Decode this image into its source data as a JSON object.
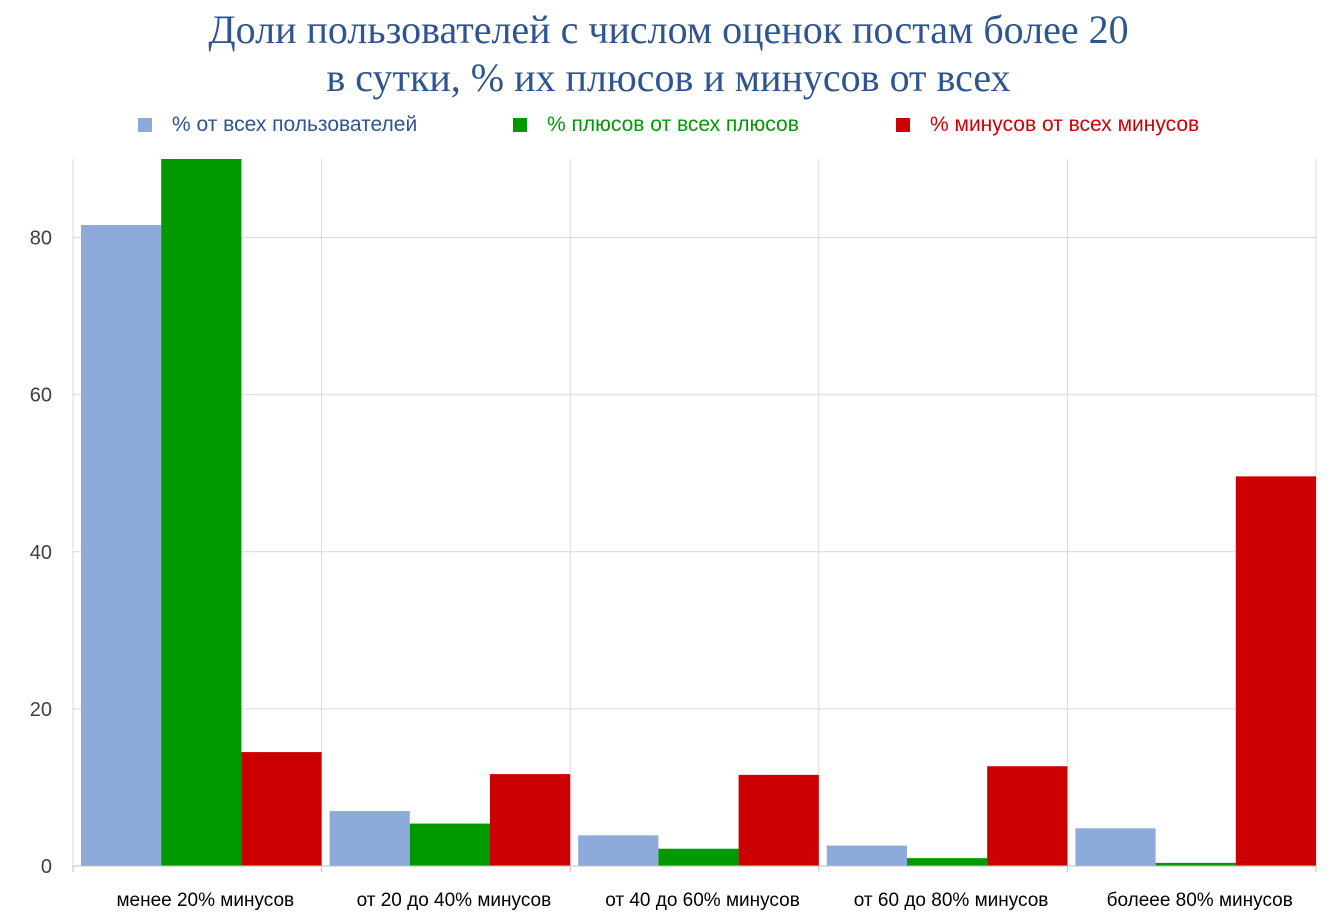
{
  "chart_data": {
    "type": "bar",
    "title": [
      "Доли пользователей с числом оценок постам более 20",
      "в сутки, % их плюсов и минусов от всех"
    ],
    "categories": [
      "менее 20% минусов",
      "от 20 до 40% минусов",
      "от 40 до 60% минусов",
      "от 60 до 80% минусов",
      "болеее 80% минусов"
    ],
    "series": [
      {
        "name": "% от всех пользователей",
        "color": "#8eaadb",
        "values": [
          81.6,
          7.0,
          3.9,
          2.6,
          4.8
        ]
      },
      {
        "name": "% плюсов от всех плюсов",
        "color": "#009900",
        "values": [
          90.5,
          5.4,
          2.2,
          1.0,
          0.4
        ]
      },
      {
        "name": "% минусов от всех минусов",
        "color": "#cc0000",
        "values": [
          14.5,
          11.7,
          11.6,
          12.7,
          49.6
        ]
      }
    ],
    "legend_colors": [
      "#2f5591",
      "#009900",
      "#cc0000"
    ],
    "xlabel": "",
    "ylabel": "",
    "ylim": [
      0,
      90
    ],
    "yticks": [
      "0",
      "20",
      "40",
      "60",
      "80"
    ],
    "grid": true,
    "legend": "top"
  }
}
